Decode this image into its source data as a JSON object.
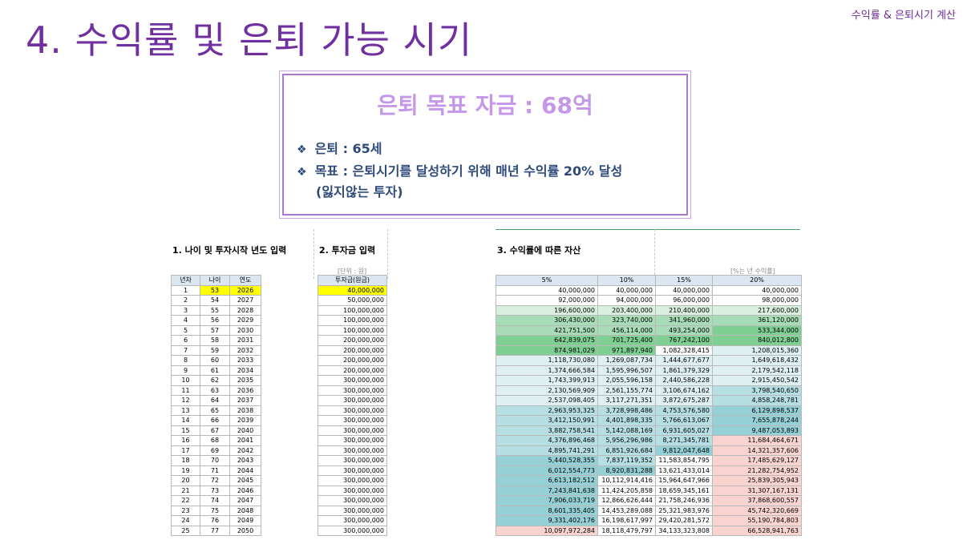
{
  "header": {
    "top_right": "수익률 & 은퇴시기 계산",
    "title": "4. 수익률 및 은퇴 가능 시기"
  },
  "goal": {
    "title": "은퇴 목표 자금 : 68억",
    "bullet_symbol": "❖",
    "line1": "은퇴 : 65세",
    "line2": "목표 : 은퇴시기를 달성하기 위해 매년 수익률 20% 달성",
    "line3": "(잃지않는 투자)"
  },
  "sheet": {
    "sec1": "1. 나이 및 투자시작 년도 입력",
    "sec2": "2. 투자금 입력",
    "sec3": "3. 수익률에 따른 자산",
    "unit_note": "[단위 : 원]",
    "rate_note": "[%는 년 수익률]",
    "t1_headers": [
      "년차",
      "나이",
      "연도"
    ],
    "t2_header": "투자금(원금)",
    "t3_headers": [
      "5%",
      "10%",
      "15%",
      "20%"
    ],
    "rows": [
      [
        "1",
        "53",
        "2026",
        "40,000,000",
        "40,000,000",
        "40,000,000",
        "40,000,000",
        "40,000,000"
      ],
      [
        "2",
        "54",
        "2027",
        "50,000,000",
        "92,000,000",
        "94,000,000",
        "96,000,000",
        "98,000,000"
      ],
      [
        "3",
        "55",
        "2028",
        "100,000,000",
        "196,600,000",
        "203,400,000",
        "210,400,000",
        "217,600,000"
      ],
      [
        "4",
        "56",
        "2029",
        "100,000,000",
        "306,430,000",
        "323,740,000",
        "341,960,000",
        "361,120,000"
      ],
      [
        "5",
        "57",
        "2030",
        "100,000,000",
        "421,751,500",
        "456,114,000",
        "493,254,000",
        "533,344,000"
      ],
      [
        "6",
        "58",
        "2031",
        "200,000,000",
        "642,839,075",
        "701,725,400",
        "767,242,100",
        "840,012,800"
      ],
      [
        "7",
        "59",
        "2032",
        "200,000,000",
        "874,981,029",
        "971,897,940",
        "1,082,328,415",
        "1,208,015,360"
      ],
      [
        "8",
        "60",
        "2033",
        "200,000,000",
        "1,118,730,080",
        "1,269,087,734",
        "1,444,677,677",
        "1,649,618,432"
      ],
      [
        "9",
        "61",
        "2034",
        "200,000,000",
        "1,374,666,584",
        "1,595,996,507",
        "1,861,379,329",
        "2,179,542,118"
      ],
      [
        "10",
        "62",
        "2035",
        "300,000,000",
        "1,743,399,913",
        "2,055,596,158",
        "2,440,586,228",
        "2,915,450,542"
      ],
      [
        "11",
        "63",
        "2036",
        "300,000,000",
        "2,130,569,909",
        "2,561,155,774",
        "3,106,674,162",
        "3,798,540,650"
      ],
      [
        "12",
        "64",
        "2037",
        "300,000,000",
        "2,537,098,405",
        "3,117,271,351",
        "3,872,675,287",
        "4,858,248,781"
      ],
      [
        "13",
        "65",
        "2038",
        "300,000,000",
        "2,963,953,325",
        "3,728,998,486",
        "4,753,576,580",
        "6,129,898,537"
      ],
      [
        "14",
        "66",
        "2039",
        "300,000,000",
        "3,412,150,991",
        "4,401,898,335",
        "5,766,613,067",
        "7,655,878,244"
      ],
      [
        "15",
        "67",
        "2040",
        "300,000,000",
        "3,882,758,541",
        "5,142,088,169",
        "6,931,605,027",
        "9,487,053,893"
      ],
      [
        "16",
        "68",
        "2041",
        "300,000,000",
        "4,376,896,468",
        "5,956,296,986",
        "8,271,345,781",
        "11,684,464,671"
      ],
      [
        "17",
        "69",
        "2042",
        "300,000,000",
        "4,895,741,291",
        "6,851,926,684",
        "9,812,047,648",
        "14,321,357,606"
      ],
      [
        "18",
        "70",
        "2043",
        "300,000,000",
        "5,440,528,355",
        "7,837,119,352",
        "11,583,854,795",
        "17,485,629,127"
      ],
      [
        "19",
        "71",
        "2044",
        "300,000,000",
        "6,012,554,773",
        "8,920,831,288",
        "13,621,433,014",
        "21,282,754,952"
      ],
      [
        "20",
        "72",
        "2045",
        "300,000,000",
        "6,613,182,512",
        "10,112,914,416",
        "15,964,647,966",
        "25,839,305,943"
      ],
      [
        "21",
        "73",
        "2046",
        "300,000,000",
        "7,243,841,638",
        "11,424,205,858",
        "18,659,345,161",
        "31,307,167,131"
      ],
      [
        "22",
        "74",
        "2047",
        "300,000,000",
        "7,906,033,719",
        "12,866,626,444",
        "21,758,246,936",
        "37,868,600,557"
      ],
      [
        "23",
        "75",
        "2048",
        "300,000,000",
        "8,601,335,405",
        "14,453,289,088",
        "25,321,983,976",
        "45,742,320,669"
      ],
      [
        "24",
        "76",
        "2049",
        "300,000,000",
        "9,331,402,176",
        "16,198,617,997",
        "29,420,281,572",
        "55,190,784,803"
      ],
      [
        "25",
        "77",
        "2050",
        "300,000,000",
        "10,097,972,284",
        "18,118,479,797",
        "34,133,323,808",
        "66,528,941,763"
      ]
    ],
    "colors": {
      "header_bg": "#dce6f1",
      "highlight_input": "#ffff00",
      "light_green": "#d9f0e0",
      "mid_green": "#a8dcb6",
      "green": "#7fcf93",
      "light_teal": "#dff0f2",
      "teal": "#b6dfe3",
      "mid_teal": "#94d0d6",
      "pink": "#f8d3cf"
    },
    "cell_colors": [
      [
        "",
        "",
        "",
        ""
      ],
      [
        "",
        "",
        "",
        ""
      ],
      [
        "light_green",
        "light_green",
        "light_green",
        "light_green"
      ],
      [
        "mid_green",
        "mid_green",
        "mid_green",
        "mid_green"
      ],
      [
        "mid_green",
        "mid_green",
        "mid_green",
        "green"
      ],
      [
        "green",
        "green",
        "green",
        "green"
      ],
      [
        "green",
        "green",
        "",
        "light_teal"
      ],
      [
        "light_teal",
        "light_teal",
        "light_teal",
        "light_teal"
      ],
      [
        "light_teal",
        "light_teal",
        "light_teal",
        "light_teal"
      ],
      [
        "light_teal",
        "light_teal",
        "light_teal",
        "light_teal"
      ],
      [
        "light_teal",
        "light_teal",
        "light_teal",
        "teal"
      ],
      [
        "light_teal",
        "light_teal",
        "light_teal",
        "teal"
      ],
      [
        "teal",
        "teal",
        "teal",
        "mid_teal"
      ],
      [
        "teal",
        "teal",
        "teal",
        "mid_teal"
      ],
      [
        "teal",
        "teal",
        "teal",
        "mid_teal"
      ],
      [
        "teal",
        "teal",
        "teal",
        "pink"
      ],
      [
        "teal",
        "teal",
        "mid_teal",
        "pink"
      ],
      [
        "mid_teal",
        "teal",
        "",
        "pink"
      ],
      [
        "mid_teal",
        "mid_teal",
        "",
        "pink"
      ],
      [
        "mid_teal",
        "",
        "",
        "pink"
      ],
      [
        "mid_teal",
        "",
        "",
        "pink"
      ],
      [
        "mid_teal",
        "",
        "",
        "pink"
      ],
      [
        "mid_teal",
        "",
        "",
        "pink"
      ],
      [
        "mid_teal",
        "",
        "",
        "pink"
      ],
      [
        "pink",
        "",
        "",
        "pink"
      ]
    ]
  }
}
